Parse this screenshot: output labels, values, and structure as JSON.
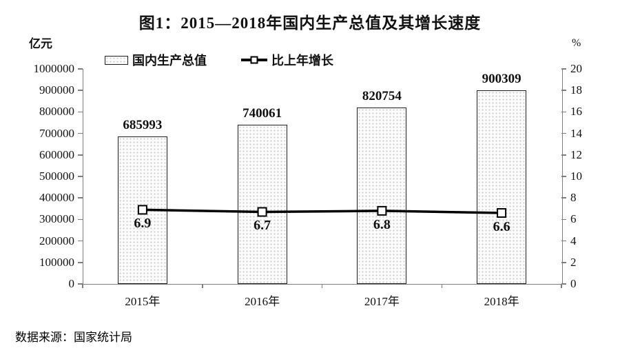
{
  "header": {
    "title": "图1：2015—2018年国内生产总值及其增长速度"
  },
  "axes": {
    "left_unit": "亿元",
    "right_unit": "%"
  },
  "legend": {
    "items": [
      {
        "label": "国内生产总值",
        "swatch": "dotted-bar"
      },
      {
        "label": "比上年增长",
        "swatch": "line-square-marker"
      }
    ]
  },
  "footer": {
    "source": "数据来源：国家统计局"
  },
  "chart_data": {
    "type": "bar",
    "title": "图1：2015—2018年国内生产总值及其增长速度",
    "source": "数据来源：国家统计局",
    "categories": [
      "2015年",
      "2016年",
      "2017年",
      "2018年"
    ],
    "series": [
      {
        "name": "国内生产总值",
        "type": "bar",
        "axis": "left",
        "unit": "亿元",
        "values": [
          685993,
          740061,
          820754,
          900309
        ]
      },
      {
        "name": "比上年增长",
        "type": "line",
        "axis": "right",
        "unit": "%",
        "values": [
          6.9,
          6.7,
          6.8,
          6.6
        ]
      }
    ],
    "left_axis": {
      "label": "亿元",
      "min": 0,
      "max": 1000000,
      "step": 100000,
      "ticks": [
        0,
        100000,
        200000,
        300000,
        400000,
        500000,
        600000,
        700000,
        800000,
        900000,
        1000000
      ]
    },
    "right_axis": {
      "label": "%",
      "min": 0,
      "max": 20,
      "step": 2,
      "ticks": [
        0,
        2,
        4,
        6,
        8,
        10,
        12,
        14,
        16,
        18,
        20
      ]
    },
    "grid": false,
    "legend_position": "top"
  }
}
